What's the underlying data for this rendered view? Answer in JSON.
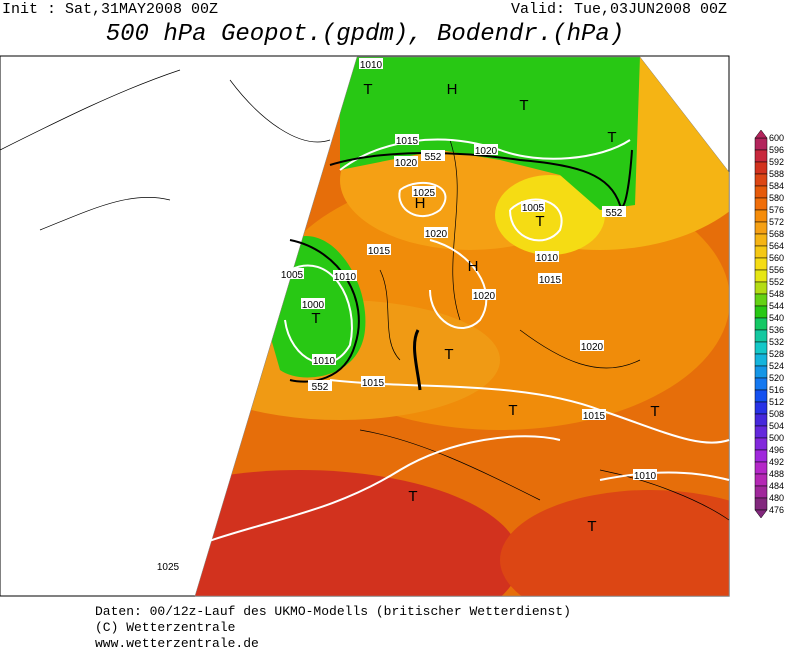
{
  "header": {
    "init": "Init : Sat,31MAY2008 00Z",
    "valid": "Valid: Tue,03JUN2008 00Z",
    "title": "500 hPa Geopot.(gpdm), Bodendr.(hPa)"
  },
  "map": {
    "labels": [
      "1010",
      "T",
      "H",
      "T",
      "T",
      "1015",
      "1020",
      "552",
      "1020",
      "1025",
      "H",
      "1005",
      "T",
      "552",
      "1020",
      "1015",
      "H",
      "1010",
      "1015",
      "1005",
      "1010",
      "1020",
      "1000",
      "T",
      "1010",
      "1020",
      "T",
      "552",
      "1015",
      "T",
      "1015",
      "T",
      "T",
      "1010",
      "T",
      "1025"
    ]
  },
  "colorbar": {
    "labels": [
      600,
      596,
      592,
      588,
      584,
      580,
      576,
      572,
      568,
      564,
      560,
      556,
      552,
      548,
      544,
      540,
      536,
      532,
      528,
      524,
      520,
      516,
      512,
      508,
      504,
      500,
      496,
      492,
      488,
      484,
      480,
      476
    ],
    "colors": [
      "#b3245c",
      "#c8283c",
      "#d2321e",
      "#dc4614",
      "#e65a0a",
      "#f06e0a",
      "#f58c0a",
      "#f5a014",
      "#f5b414",
      "#f5c814",
      "#f5dc14",
      "#e6e614",
      "#b4dc14",
      "#64d214",
      "#28c814",
      "#14c864",
      "#14c8a0",
      "#14c8c8",
      "#14b4dc",
      "#1496e6",
      "#1478f0",
      "#1450f0",
      "#2832e6",
      "#4628dc",
      "#6428dc",
      "#8228dc",
      "#a028dc",
      "#b428c8",
      "#b428b4",
      "#a0289b",
      "#82287d"
    ]
  },
  "footer": {
    "line1": "Daten: 00/12z-Lauf des UKMO-Modells (britischer Wetterdienst)",
    "line2": "(C) Wetterzentrale",
    "line3": "www.wetterzentrale.de"
  }
}
